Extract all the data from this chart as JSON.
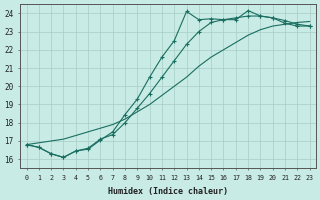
{
  "xlabel": "Humidex (Indice chaleur)",
  "bg_color": "#c8ebe5",
  "line_color": "#1a6e60",
  "grid_color": "#b8ddd8",
  "xlim": [
    -0.5,
    23.5
  ],
  "ylim": [
    15.5,
    24.5
  ],
  "xticks": [
    0,
    1,
    2,
    3,
    4,
    5,
    6,
    7,
    8,
    9,
    10,
    11,
    12,
    13,
    14,
    15,
    16,
    17,
    18,
    19,
    20,
    21,
    22,
    23
  ],
  "yticks": [
    16,
    17,
    18,
    19,
    20,
    21,
    22,
    23,
    24
  ],
  "series1_x": [
    0,
    1,
    2,
    3,
    4,
    5,
    6,
    7,
    8,
    9,
    10,
    11,
    12,
    13,
    14,
    15,
    16,
    17,
    18,
    19,
    20,
    21,
    22,
    23
  ],
  "series1_y": [
    16.8,
    16.65,
    16.3,
    16.1,
    16.45,
    16.55,
    17.05,
    17.5,
    18.45,
    19.3,
    20.5,
    21.6,
    22.5,
    24.1,
    23.65,
    23.7,
    23.65,
    23.65,
    24.15,
    23.85,
    23.75,
    23.45,
    23.3,
    23.3
  ],
  "series2_x": [
    0,
    1,
    2,
    3,
    4,
    5,
    6,
    7,
    8,
    9,
    10,
    11,
    12,
    13,
    14,
    15,
    16,
    17,
    18,
    19,
    20,
    21,
    22,
    23
  ],
  "series2_y": [
    16.8,
    16.65,
    16.3,
    16.1,
    16.45,
    16.6,
    17.1,
    17.35,
    18.0,
    18.8,
    19.6,
    20.5,
    21.4,
    22.3,
    23.0,
    23.5,
    23.65,
    23.75,
    23.85,
    23.85,
    23.75,
    23.6,
    23.4,
    23.3
  ],
  "series3_x": [
    0,
    1,
    2,
    3,
    4,
    5,
    6,
    7,
    8,
    9,
    10,
    11,
    12,
    13,
    14,
    15,
    16,
    17,
    18,
    19,
    20,
    21,
    22,
    23
  ],
  "series3_y": [
    16.8,
    16.9,
    17.0,
    17.1,
    17.3,
    17.5,
    17.7,
    17.9,
    18.2,
    18.6,
    19.0,
    19.5,
    20.0,
    20.5,
    21.1,
    21.6,
    22.0,
    22.4,
    22.8,
    23.1,
    23.3,
    23.4,
    23.5,
    23.55
  ]
}
